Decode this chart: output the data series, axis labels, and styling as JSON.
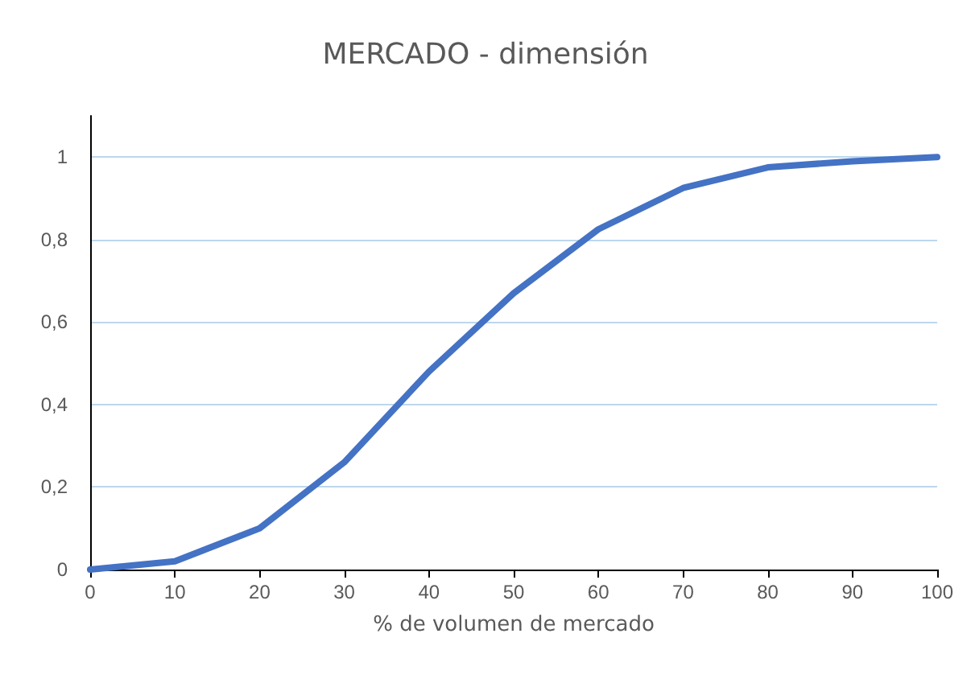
{
  "chart_data": {
    "type": "line",
    "title": "MERCADO - dimensión",
    "xlabel": "% de volumen de mercado",
    "x": [
      0,
      10,
      20,
      30,
      40,
      50,
      60,
      70,
      80,
      90,
      100
    ],
    "series": [
      {
        "color": "#4472c4",
        "values": [
          0,
          0.02,
          0.1,
          0.26,
          0.48,
          0.67,
          0.825,
          0.925,
          0.975,
          0.99,
          1
        ]
      }
    ],
    "xlim": [
      0,
      100
    ],
    "xticks": [
      0,
      10,
      20,
      30,
      40,
      50,
      60,
      70,
      80,
      90,
      100
    ],
    "ylim": [
      0,
      1.1
    ],
    "yticks": [
      0,
      {
        "value": 0.2,
        "label": "0,2"
      },
      {
        "value": 0.4,
        "label": "0,4"
      },
      {
        "value": 0.6,
        "label": "0,6"
      },
      {
        "value": 0.8,
        "label": "0,8"
      },
      1
    ],
    "grid": "y",
    "marker": "none",
    "line_style": "solid"
  }
}
